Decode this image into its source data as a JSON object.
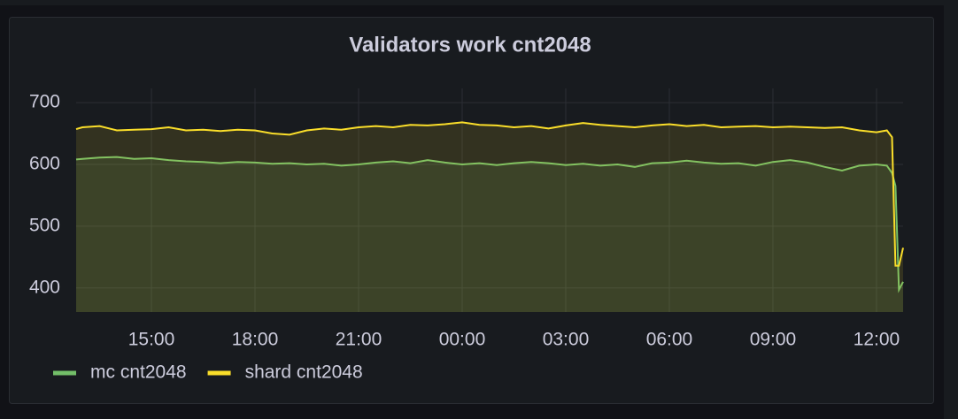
{
  "chart_data": {
    "type": "line",
    "title": "Validators work cnt2048",
    "x": [
      12.82,
      13.0,
      13.5,
      14.0,
      14.5,
      15.0,
      15.5,
      16.0,
      16.5,
      17.0,
      17.5,
      18.0,
      18.5,
      19.0,
      19.5,
      20.0,
      20.5,
      21.0,
      21.5,
      22.0,
      22.5,
      23.0,
      23.5,
      24.0,
      24.5,
      25.0,
      25.5,
      26.0,
      26.5,
      27.0,
      27.5,
      28.0,
      28.5,
      29.0,
      29.5,
      30.0,
      30.5,
      31.0,
      31.5,
      32.0,
      32.5,
      33.0,
      33.5,
      34.0,
      34.5,
      35.0,
      35.5,
      36.0,
      36.3,
      36.45,
      36.55,
      36.65,
      36.77
    ],
    "series": [
      {
        "name": "mc cnt2048",
        "color": "#73bf69",
        "values": [
          608,
          609,
          611,
          612,
          609,
          610,
          607,
          605,
          604,
          602,
          604,
          603,
          601,
          602,
          600,
          601,
          598,
          600,
          603,
          605,
          602,
          607,
          603,
          600,
          602,
          599,
          602,
          604,
          602,
          599,
          601,
          598,
          600,
          596,
          602,
          603,
          606,
          603,
          601,
          602,
          598,
          604,
          607,
          603,
          596,
          590,
          598,
          600,
          598,
          586,
          565,
          397,
          410
        ]
      },
      {
        "name": "shard cnt2048",
        "color": "#fade2a",
        "values": [
          657,
          660,
          662,
          655,
          656,
          657,
          660,
          655,
          656,
          654,
          656,
          655,
          650,
          648,
          655,
          658,
          656,
          660,
          662,
          660,
          664,
          663,
          665,
          668,
          664,
          663,
          660,
          662,
          658,
          663,
          667,
          664,
          662,
          660,
          663,
          665,
          662,
          664,
          660,
          661,
          662,
          660,
          661,
          660,
          659,
          660,
          655,
          652,
          655,
          644,
          436,
          436,
          465
        ]
      }
    ],
    "xlim": [
      12.82,
      36.77
    ],
    "xticks": [
      {
        "value": 15,
        "label": "15:00"
      },
      {
        "value": 18,
        "label": "18:00"
      },
      {
        "value": 21,
        "label": "21:00"
      },
      {
        "value": 24,
        "label": "00:00"
      },
      {
        "value": 27,
        "label": "03:00"
      },
      {
        "value": 30,
        "label": "06:00"
      },
      {
        "value": 33,
        "label": "09:00"
      },
      {
        "value": 36,
        "label": "12:00"
      }
    ],
    "ylim": [
      361,
      723
    ],
    "yticks": [
      400,
      500,
      600,
      700
    ],
    "grid": true,
    "fill": true,
    "legend": "bottom-left"
  }
}
